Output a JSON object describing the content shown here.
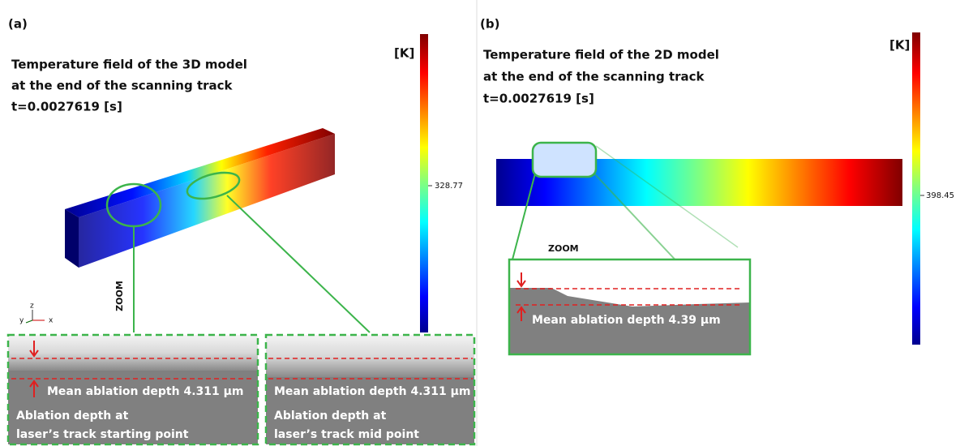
{
  "panel_a": {
    "label": "(a)",
    "title_lines": [
      "Temperature field of the 3D model",
      "at the end of the scanning track",
      "t=0.0027619 [s]"
    ],
    "colorbar_unit": "[K]",
    "colorbar_label": "328.77",
    "zoom": "ZOOM",
    "axes": [
      "z",
      "y",
      "x"
    ],
    "zoom_boxes": [
      {
        "depth": "Mean ablation depth 4.311 μm",
        "caption": [
          "Ablation depth at",
          "laser’s track starting point"
        ]
      },
      {
        "depth": "Mean ablation depth 4.311 μm",
        "caption": [
          "Ablation depth at",
          "laser’s track mid point"
        ]
      }
    ]
  },
  "panel_b": {
    "label": "(b)",
    "title_lines": [
      "Temperature field of the 2D model",
      "at the end of the scanning track",
      "t=0.0027619 [s]"
    ],
    "colorbar_unit": "[K]",
    "colorbar_label": "398.45",
    "zoom": "ZOOM",
    "depth": "Mean ablation depth 4.39 μm"
  }
}
